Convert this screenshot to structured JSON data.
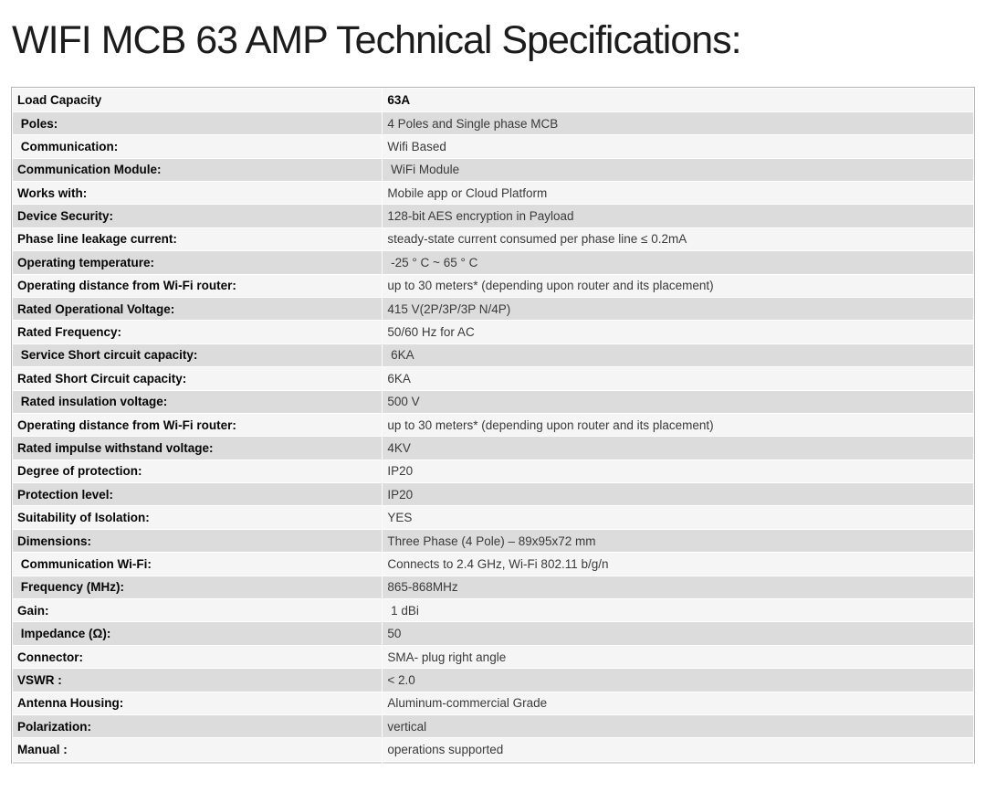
{
  "page": {
    "title": "WIFI MCB 63 AMP Technical Specifications:"
  },
  "colors": {
    "title_text": "#1c1c1c",
    "row_odd": "#f5f5f5",
    "row_even": "#dcdcdc",
    "table_border": "#b3b3b3",
    "cell_border": "#ffffff",
    "label_text": "#060606",
    "value_text": "#3a3a3a"
  },
  "spec_table": {
    "rows": [
      {
        "label": "Load Capacity",
        "value": "63A",
        "value_bold": true
      },
      {
        "label": " Poles:",
        "value": "4 Poles and Single phase MCB"
      },
      {
        "label": " Communication:",
        "value": "Wifi Based"
      },
      {
        "label": "Communication Module:",
        "value": " WiFi Module"
      },
      {
        "label": "Works with:",
        "value": "Mobile app or Cloud Platform"
      },
      {
        "label": "Device Security:",
        "value": "128-bit AES encryption in Payload"
      },
      {
        "label": "Phase line leakage current:",
        "value": "steady-state current consumed per phase line ≤ 0.2mA"
      },
      {
        "label": "Operating temperature:",
        "value": " -25 ° C ~ 65 ° C"
      },
      {
        "label": "Operating distance from Wi-Fi router:",
        "value": "up to 30 meters* (depending upon router and its placement)"
      },
      {
        "label": "Rated Operational Voltage:",
        "value": "415 V(2P/3P/3P N/4P)"
      },
      {
        "label": "Rated Frequency:",
        "value": "50/60 Hz for AC"
      },
      {
        "label": " Service Short circuit capacity:",
        "value": " 6KA"
      },
      {
        "label": "Rated Short Circuit capacity:",
        "value": "6KA"
      },
      {
        "label": " Rated insulation voltage:",
        "value": "500 V"
      },
      {
        "label": "Operating distance from Wi-Fi router:",
        "value": "up to 30 meters* (depending upon router and its placement)"
      },
      {
        "label": "Rated impulse withstand voltage:",
        "value": "4KV"
      },
      {
        "label": "Degree of protection:",
        "value": "IP20"
      },
      {
        "label": "Protection level:",
        "value": "IP20"
      },
      {
        "label": "Suitability of Isolation:",
        "value": "YES"
      },
      {
        "label": "Dimensions:",
        "value": "Three Phase (4 Pole) – 89x95x72 mm"
      },
      {
        "label": " Communication Wi-Fi:",
        "value": "Connects to 2.4 GHz, Wi-Fi 802.11 b/g/n"
      },
      {
        "label": " Frequency (MHz):",
        "value": "865-868MHz"
      },
      {
        "label": "Gain:",
        "value": " 1 dBi"
      },
      {
        "label": " Impedance (Ω):",
        "value": "50"
      },
      {
        "label": "Connector:",
        "value": "SMA- plug right angle"
      },
      {
        "label": "VSWR :",
        "value": "< 2.0"
      },
      {
        "label": "Antenna Housing:",
        "value": "Aluminum-commercial Grade"
      },
      {
        "label": "Polarization:",
        "value": "vertical"
      },
      {
        "label": "Manual :",
        "value": "operations supported"
      },
      {
        "label": "",
        "value": ""
      }
    ]
  }
}
